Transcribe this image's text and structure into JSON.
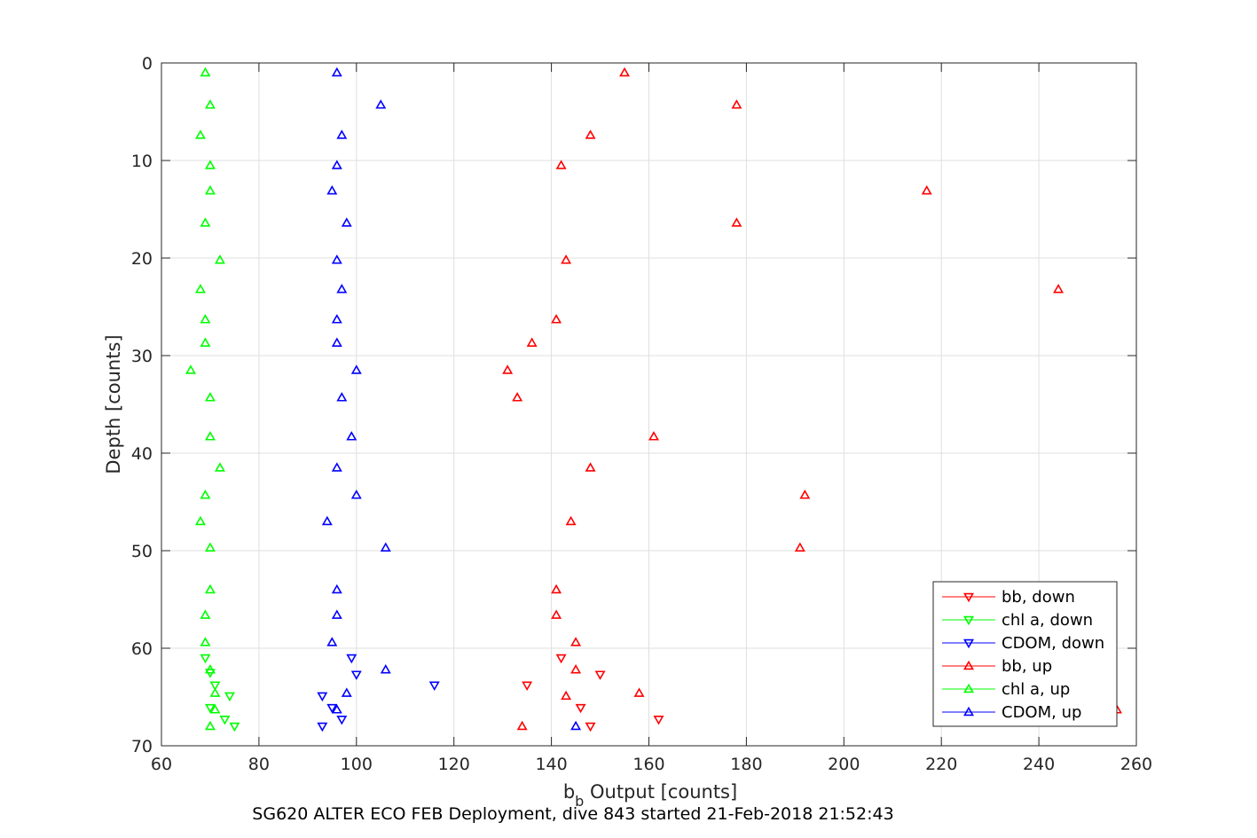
{
  "chart_data": {
    "type": "scatter",
    "xlabel_main": "b",
    "xlabel_sub": "b",
    "xlabel_rest": " Output [counts]",
    "ylabel": "Depth [counts]",
    "caption": "SG620 ALTER ECO FEB Deployment, dive 843 started 21-Feb-2018 21:52:43",
    "xlim": [
      60,
      260
    ],
    "ylim": [
      0,
      70
    ],
    "y_reversed": true,
    "grid": true,
    "legend_position": "bottom-right",
    "x_ticks": [
      "60",
      "80",
      "100",
      "120",
      "140",
      "160",
      "180",
      "200",
      "220",
      "240",
      "260"
    ],
    "y_ticks": [
      "0",
      "10",
      "20",
      "30",
      "40",
      "50",
      "60",
      "70"
    ],
    "series": [
      {
        "name": "bb, down",
        "color": "#ff0000",
        "marker": "down",
        "points": [
          [
            142,
            61
          ],
          [
            150,
            62.7
          ],
          [
            135,
            63.8
          ],
          [
            146,
            66.1
          ],
          [
            162,
            67.3
          ],
          [
            148,
            68
          ]
        ]
      },
      {
        "name": "chl a, down",
        "color": "#00ff00",
        "marker": "down",
        "points": [
          [
            69,
            61
          ],
          [
            70,
            62.5
          ],
          [
            71,
            63.8
          ],
          [
            74,
            64.9
          ],
          [
            70,
            66.1
          ],
          [
            73,
            67.3
          ],
          [
            75,
            68
          ]
        ]
      },
      {
        "name": "CDOM, down",
        "color": "#0000ff",
        "marker": "down",
        "points": [
          [
            99,
            61
          ],
          [
            100,
            62.7
          ],
          [
            116,
            63.8
          ],
          [
            93,
            64.9
          ],
          [
            95,
            66.1
          ],
          [
            97,
            67.3
          ],
          [
            93,
            68
          ]
        ]
      },
      {
        "name": "bb, up",
        "color": "#ff0000",
        "marker": "up",
        "points": [
          [
            155,
            1
          ],
          [
            178,
            4.3
          ],
          [
            148,
            7.4
          ],
          [
            142,
            10.5
          ],
          [
            217,
            13.1
          ],
          [
            178,
            16.4
          ],
          [
            143,
            20.2
          ],
          [
            244,
            23.2
          ],
          [
            141,
            26.3
          ],
          [
            136,
            28.7
          ],
          [
            131,
            31.5
          ],
          [
            133,
            34.3
          ],
          [
            161,
            38.3
          ],
          [
            148,
            41.5
          ],
          [
            192,
            44.3
          ],
          [
            144,
            47
          ],
          [
            191,
            49.7
          ],
          [
            141,
            54
          ],
          [
            141,
            56.6
          ],
          [
            145,
            59.4
          ],
          [
            145,
            62.2
          ],
          [
            158,
            64.6
          ],
          [
            143,
            64.9
          ],
          [
            256,
            66.3
          ],
          [
            134,
            68
          ]
        ]
      },
      {
        "name": "chl a, up",
        "color": "#00ff00",
        "marker": "up",
        "points": [
          [
            69,
            1
          ],
          [
            70,
            4.3
          ],
          [
            68,
            7.4
          ],
          [
            70,
            10.5
          ],
          [
            70,
            13.1
          ],
          [
            69,
            16.4
          ],
          [
            72,
            20.2
          ],
          [
            68,
            23.2
          ],
          [
            69,
            26.3
          ],
          [
            69,
            28.7
          ],
          [
            66,
            31.5
          ],
          [
            70,
            34.3
          ],
          [
            70,
            38.3
          ],
          [
            72,
            41.5
          ],
          [
            69,
            44.3
          ],
          [
            68,
            47
          ],
          [
            70,
            49.7
          ],
          [
            70,
            54
          ],
          [
            69,
            56.6
          ],
          [
            69,
            59.4
          ],
          [
            70,
            62.2
          ],
          [
            71,
            64.6
          ],
          [
            71,
            66.3
          ],
          [
            70,
            68
          ]
        ]
      },
      {
        "name": "CDOM, up",
        "color": "#0000ff",
        "marker": "up",
        "points": [
          [
            96,
            1
          ],
          [
            105,
            4.3
          ],
          [
            97,
            7.4
          ],
          [
            96,
            10.5
          ],
          [
            95,
            13.1
          ],
          [
            98,
            16.4
          ],
          [
            96,
            20.2
          ],
          [
            97,
            23.2
          ],
          [
            96,
            26.3
          ],
          [
            96,
            28.7
          ],
          [
            100,
            31.5
          ],
          [
            97,
            34.3
          ],
          [
            99,
            38.3
          ],
          [
            96,
            41.5
          ],
          [
            100,
            44.3
          ],
          [
            94,
            47
          ],
          [
            106,
            49.7
          ],
          [
            96,
            54
          ],
          [
            96,
            56.6
          ],
          [
            95,
            59.4
          ],
          [
            106,
            62.2
          ],
          [
            98,
            64.6
          ],
          [
            96,
            66.3
          ],
          [
            145,
            68
          ]
        ]
      }
    ]
  }
}
